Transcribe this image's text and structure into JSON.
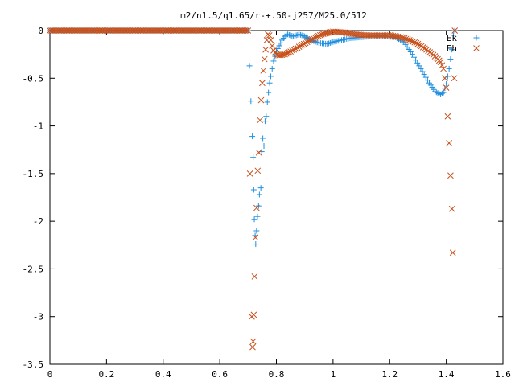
{
  "chart_data": {
    "type": "scatter",
    "title": "m2/n1.5/q1.65/r-+.50-j257/M25.0/512",
    "xlabel": "",
    "ylabel": "",
    "xlim": [
      0,
      1.6
    ],
    "ylim": [
      -3.5,
      0
    ],
    "x_ticks": [
      "0",
      "0.2",
      "0.4",
      "0.6",
      "0.8",
      "1",
      "1.2",
      "1.4",
      "1.6"
    ],
    "y_ticks": [
      "0",
      "-0.5",
      "-1",
      "-1.5",
      "-2",
      "-2.5",
      "-3",
      "-3.5"
    ],
    "grid": false,
    "legend": "top-right",
    "series": [
      {
        "name": "Ek",
        "marker": "plus",
        "color": "#1f8fe0",
        "points": [
          [
            0,
            0
          ],
          [
            0.05,
            0
          ],
          [
            0.1,
            0
          ],
          [
            0.15,
            0
          ],
          [
            0.2,
            0
          ],
          [
            0.25,
            0
          ],
          [
            0.3,
            0
          ],
          [
            0.35,
            0
          ],
          [
            0.4,
            0
          ],
          [
            0.45,
            0
          ],
          [
            0.5,
            0
          ],
          [
            0.55,
            0
          ],
          [
            0.6,
            0
          ],
          [
            0.65,
            0
          ],
          [
            0.7,
            0
          ],
          [
            0.715,
            -1.11
          ],
          [
            0.718,
            -1.33
          ],
          [
            0.72,
            -1.67
          ],
          [
            0.722,
            -1.98
          ],
          [
            0.725,
            -2.15
          ],
          [
            0.727,
            -2.24
          ],
          [
            0.73,
            -2.1
          ],
          [
            0.733,
            -1.95
          ],
          [
            0.737,
            -1.84
          ],
          [
            0.74,
            -1.72
          ],
          [
            0.745,
            -1.65
          ],
          [
            0.748,
            -1.27
          ],
          [
            0.752,
            -1.13
          ],
          [
            0.756,
            -1.21
          ],
          [
            0.76,
            -0.95
          ],
          [
            0.764,
            -0.9
          ],
          [
            0.768,
            -0.75
          ],
          [
            0.772,
            -0.65
          ],
          [
            0.776,
            -0.55
          ],
          [
            0.78,
            -0.48
          ],
          [
            0.785,
            -0.4
          ],
          [
            0.79,
            -0.32
          ],
          [
            0.8,
            -0.22
          ],
          [
            0.81,
            -0.16
          ],
          [
            0.82,
            -0.1
          ],
          [
            0.83,
            -0.06
          ],
          [
            0.84,
            -0.04
          ],
          [
            0.85,
            -0.05
          ],
          [
            0.86,
            -0.06
          ],
          [
            0.87,
            -0.05
          ],
          [
            0.88,
            -0.04
          ],
          [
            0.9,
            -0.06
          ],
          [
            0.92,
            -0.1
          ],
          [
            0.95,
            -0.13
          ],
          [
            0.98,
            -0.14
          ],
          [
            1.0,
            -0.12
          ],
          [
            1.03,
            -0.1
          ],
          [
            1.06,
            -0.08
          ],
          [
            1.1,
            -0.07
          ],
          [
            1.14,
            -0.06
          ],
          [
            1.18,
            -0.06
          ],
          [
            1.22,
            -0.07
          ],
          [
            1.25,
            -0.12
          ],
          [
            1.28,
            -0.25
          ],
          [
            1.31,
            -0.4
          ],
          [
            1.34,
            -0.55
          ],
          [
            1.36,
            -0.64
          ],
          [
            1.38,
            -0.67
          ],
          [
            1.39,
            -0.65
          ],
          [
            1.4,
            -0.56
          ],
          [
            1.41,
            -0.4
          ],
          [
            1.42,
            -0.2
          ],
          [
            1.425,
            -0.05
          ],
          [
            1.43,
            0
          ]
        ]
      },
      {
        "name": "Eh",
        "marker": "cross",
        "color": "#c8501a",
        "points": [
          [
            0,
            0
          ],
          [
            0.05,
            0
          ],
          [
            0.1,
            0
          ],
          [
            0.15,
            0
          ],
          [
            0.2,
            0
          ],
          [
            0.25,
            0
          ],
          [
            0.3,
            0
          ],
          [
            0.35,
            0
          ],
          [
            0.4,
            0
          ],
          [
            0.45,
            0
          ],
          [
            0.5,
            0
          ],
          [
            0.55,
            0
          ],
          [
            0.6,
            0
          ],
          [
            0.65,
            0
          ],
          [
            0.7,
            0
          ],
          [
            0.713,
            -3.0
          ],
          [
            0.716,
            -3.32
          ],
          [
            0.718,
            -3.26
          ],
          [
            0.72,
            -2.98
          ],
          [
            0.723,
            -2.58
          ],
          [
            0.726,
            -2.17
          ],
          [
            0.73,
            -1.86
          ],
          [
            0.734,
            -1.47
          ],
          [
            0.738,
            -1.28
          ],
          [
            0.742,
            -0.94
          ],
          [
            0.746,
            -0.73
          ],
          [
            0.75,
            -0.55
          ],
          [
            0.754,
            -0.42
          ],
          [
            0.758,
            -0.3
          ],
          [
            0.762,
            -0.2
          ],
          [
            0.766,
            -0.1
          ],
          [
            0.77,
            -0.04
          ],
          [
            0.775,
            -0.05
          ],
          [
            0.78,
            -0.1
          ],
          [
            0.785,
            -0.16
          ],
          [
            0.79,
            -0.21
          ],
          [
            0.8,
            -0.25
          ],
          [
            0.81,
            -0.26
          ],
          [
            0.83,
            -0.25
          ],
          [
            0.85,
            -0.22
          ],
          [
            0.88,
            -0.17
          ],
          [
            0.92,
            -0.1
          ],
          [
            0.96,
            -0.04
          ],
          [
            1.0,
            -0.01
          ],
          [
            1.04,
            -0.02
          ],
          [
            1.08,
            -0.04
          ],
          [
            1.12,
            -0.05
          ],
          [
            1.16,
            -0.05
          ],
          [
            1.2,
            -0.05
          ],
          [
            1.24,
            -0.07
          ],
          [
            1.27,
            -0.1
          ],
          [
            1.3,
            -0.14
          ],
          [
            1.33,
            -0.2
          ],
          [
            1.36,
            -0.27
          ],
          [
            1.38,
            -0.33
          ],
          [
            1.39,
            -0.4
          ],
          [
            1.4,
            -0.6
          ],
          [
            1.405,
            -0.9
          ],
          [
            1.41,
            -1.18
          ],
          [
            1.415,
            -1.52
          ],
          [
            1.42,
            -1.87
          ],
          [
            1.423,
            -2.33
          ],
          [
            1.428,
            -0.5
          ],
          [
            1.43,
            0
          ]
        ]
      }
    ]
  }
}
